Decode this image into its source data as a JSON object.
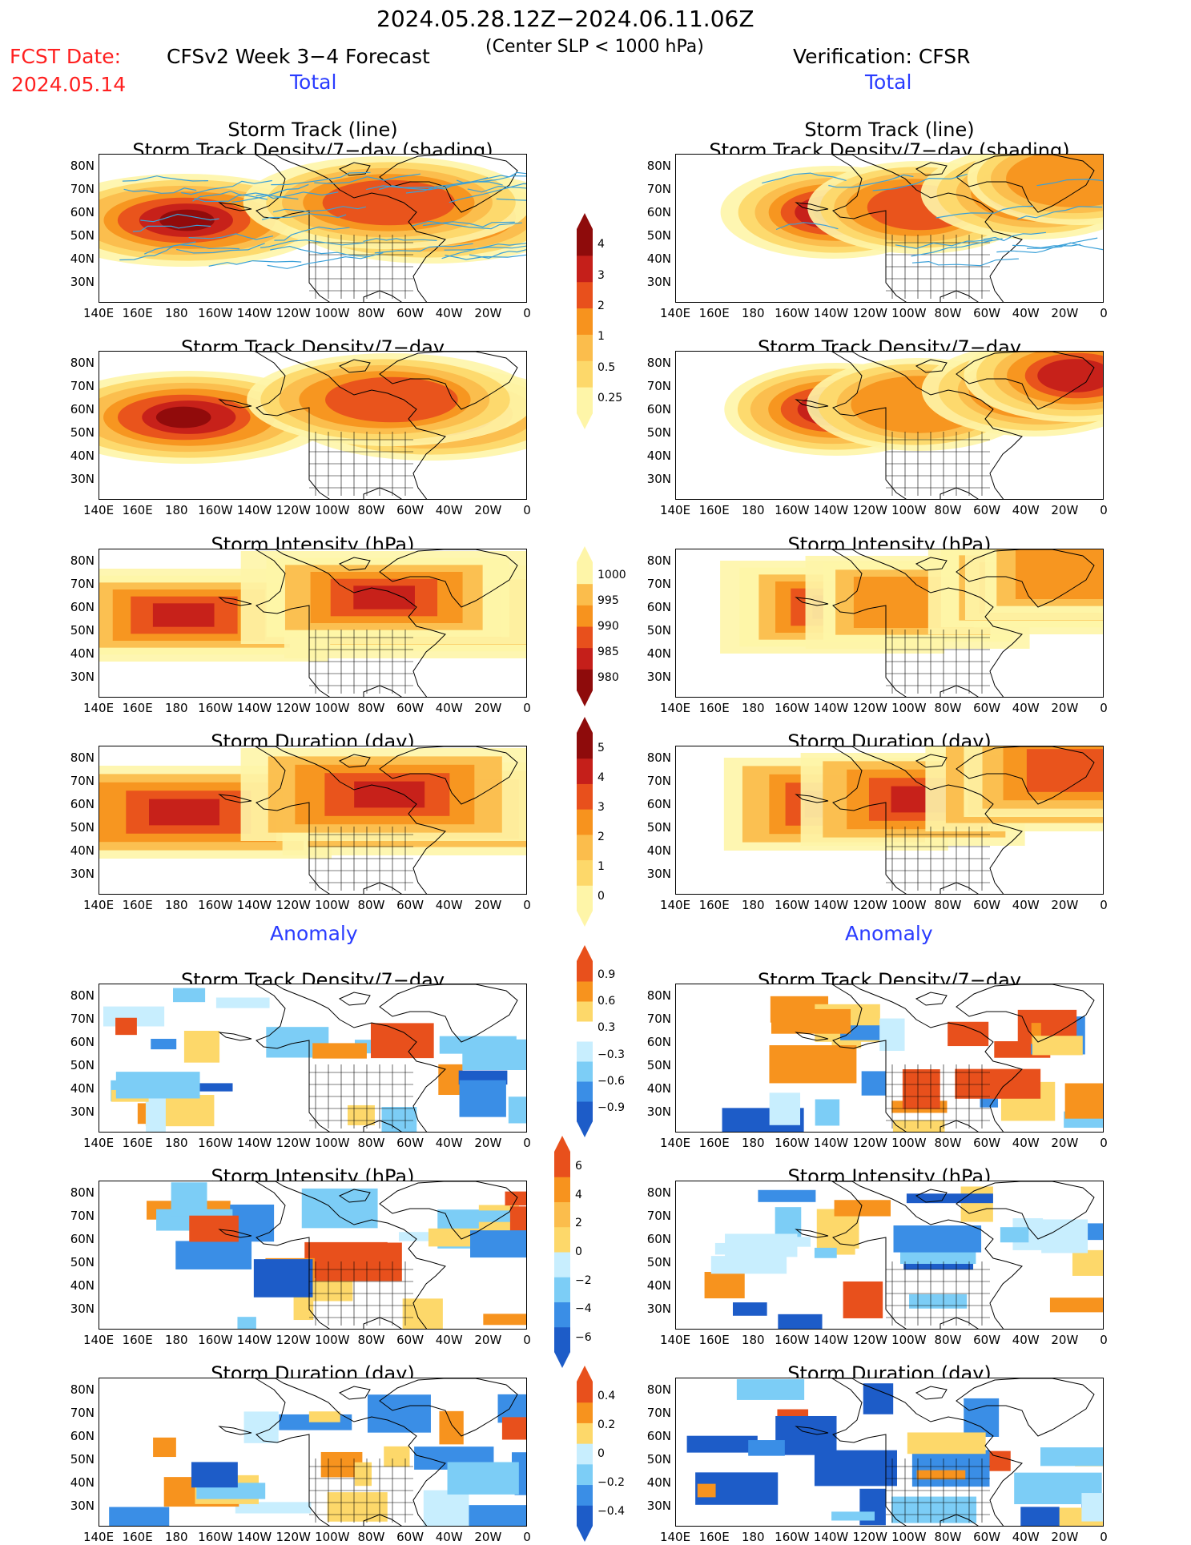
{
  "header": {
    "period": "2024.05.28.12Z−2024.06.11.06Z",
    "fcst_label": "FCST Date:",
    "fcst_date": "2024.05.14",
    "model": "CFSv2 Week 3−4 Forecast",
    "subtitle": "(Center SLP < 1000 hPa)",
    "verification": "Verification: CFSR",
    "total_left": "Total",
    "total_right": "Total",
    "anomaly_left": "Anomaly",
    "anomaly_right": "Anomaly"
  },
  "titles": {
    "track_line": "Storm Track (line)",
    "track_density_shading": "Storm Track Density/7−day (shading)",
    "track_density": "Storm Track Density/7−day",
    "intensity": "Storm Intensity (hPa)",
    "duration": "Storm Duration (day)"
  },
  "axes": {
    "lat_ticks": [
      "80N",
      "70N",
      "60N",
      "50N",
      "40N",
      "30N"
    ],
    "lon_ticks": [
      "140E",
      "160E",
      "180",
      "160W",
      "140W",
      "120W",
      "100W",
      "80W",
      "60W",
      "40W",
      "20W",
      "0"
    ]
  },
  "colorbars": {
    "density": [
      "4",
      "3",
      "2",
      "1",
      "0.5",
      "0.25"
    ],
    "intensity": [
      "1000",
      "995",
      "990",
      "985",
      "980"
    ],
    "duration": [
      "5",
      "4",
      "3",
      "2",
      "1",
      "0"
    ],
    "anom_density": [
      "0.9",
      "0.6",
      "0.3",
      "−0.3",
      "−0.6",
      "−0.9"
    ],
    "anom_intensity": [
      "6",
      "4",
      "2",
      "0",
      "−2",
      "−4",
      "−6"
    ],
    "anom_duration": [
      "0.4",
      "0.2",
      "0",
      "−0.2",
      "−0.4"
    ]
  },
  "colors": {
    "pale_yellow": "#fef5a8",
    "yellow": "#fdd86a",
    "light_orange": "#fbbd4c",
    "orange": "#f7931e",
    "red_orange": "#e8501c",
    "red": "#c51f1a",
    "dark_red": "#8e0b0b",
    "light_blue": "#c8eefe",
    "mid_blue": "#7ccdf6",
    "blue": "#3a8ee6",
    "dark_blue": "#1d5cc8",
    "track_line": "#3aa0d8"
  }
}
